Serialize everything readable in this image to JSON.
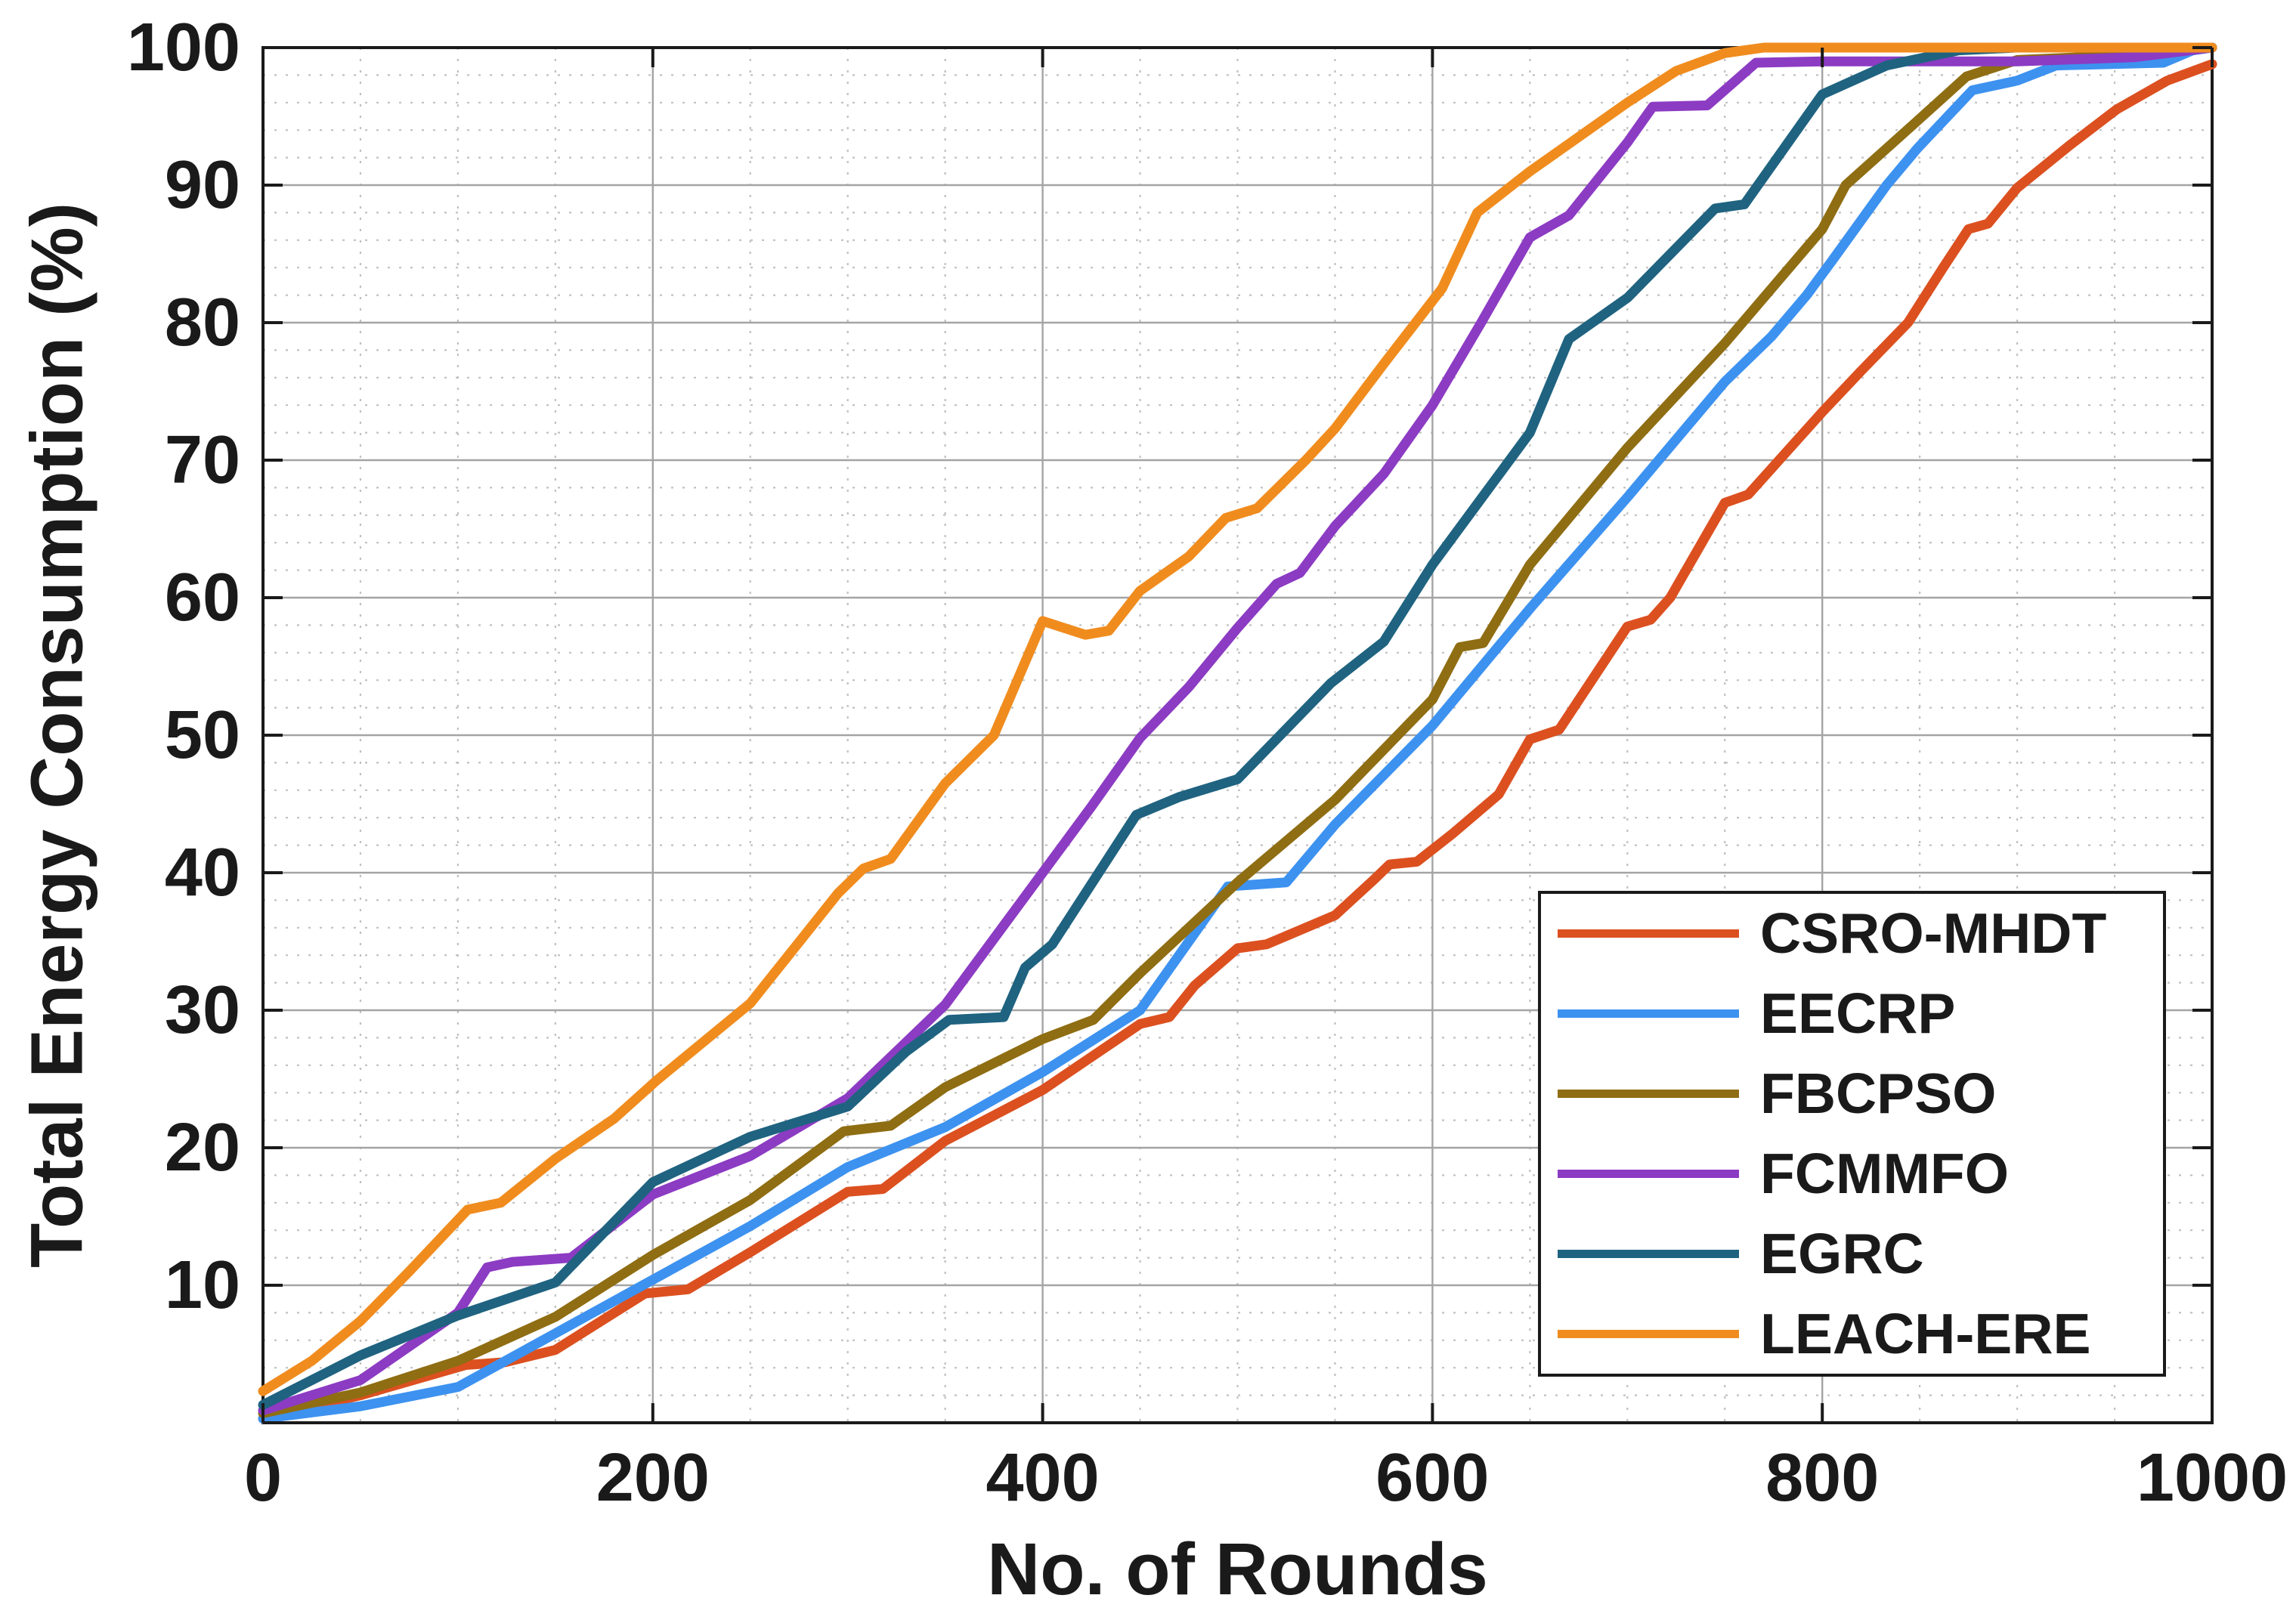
{
  "figure": {
    "background": "#ffffff",
    "axis_color": "#1a1a1a"
  },
  "chart_data": {
    "type": "line",
    "title": "",
    "xlabel": "No. of Rounds",
    "ylabel": "Total Energy Consumption (%)",
    "xlim": [
      0,
      1000
    ],
    "ylim": [
      0,
      100
    ],
    "x_ticks": [
      0,
      200,
      400,
      600,
      800,
      1000
    ],
    "x_tick_labels": [
      "0",
      "200",
      "400",
      "600",
      "800",
      "1000"
    ],
    "y_ticks": [
      10,
      20,
      30,
      40,
      50,
      60,
      70,
      80,
      90,
      100
    ],
    "y_tick_labels": [
      "10",
      "20",
      "30",
      "40",
      "50",
      "60",
      "70",
      "80",
      "90",
      "100"
    ],
    "grid": {
      "major": true,
      "minor": true,
      "minor_x_step": 50,
      "minor_y_step": 2,
      "major_color": "#a4a4a4",
      "minor_color": "#c0c0c0"
    },
    "legend_position": "southeast",
    "line_width": 13,
    "series": [
      {
        "name": "CSRO-MHDT",
        "color": "#DC5020",
        "points": [
          [
            0,
            0.3
          ],
          [
            50,
            2
          ],
          [
            104,
            4.2
          ],
          [
            124,
            4.4
          ],
          [
            150,
            5.3
          ],
          [
            196,
            9.4
          ],
          [
            218,
            9.7
          ],
          [
            250,
            12.4
          ],
          [
            300,
            16.8
          ],
          [
            318,
            17
          ],
          [
            350,
            20.5
          ],
          [
            400,
            24.2
          ],
          [
            450,
            29
          ],
          [
            465,
            29.5
          ],
          [
            478,
            31.8
          ],
          [
            500,
            34.5
          ],
          [
            515,
            34.8
          ],
          [
            550,
            36.9
          ],
          [
            570,
            39.5
          ],
          [
            578,
            40.6
          ],
          [
            592,
            40.8
          ],
          [
            610,
            42.8
          ],
          [
            634,
            45.7
          ],
          [
            650,
            49.7
          ],
          [
            665,
            50.4
          ],
          [
            700,
            57.9
          ],
          [
            712,
            58.4
          ],
          [
            722,
            60
          ],
          [
            750,
            66.9
          ],
          [
            762,
            67.5
          ],
          [
            800,
            73.5
          ],
          [
            820,
            76.5
          ],
          [
            844,
            80
          ],
          [
            862,
            84
          ],
          [
            875,
            86.8
          ],
          [
            885,
            87.2
          ],
          [
            900,
            89.8
          ],
          [
            927,
            92.9
          ],
          [
            951,
            95.5
          ],
          [
            977,
            97.6
          ],
          [
            1000,
            98.8
          ]
        ]
      },
      {
        "name": "EECRP",
        "color": "#3D92F0",
        "points": [
          [
            0,
            0.3
          ],
          [
            50,
            1.2
          ],
          [
            100,
            2.6
          ],
          [
            150,
            6.5
          ],
          [
            200,
            10.4
          ],
          [
            250,
            14.3
          ],
          [
            300,
            18.6
          ],
          [
            350,
            21.5
          ],
          [
            400,
            25.5
          ],
          [
            450,
            30
          ],
          [
            495,
            39
          ],
          [
            525,
            39.3
          ],
          [
            550,
            43.5
          ],
          [
            600,
            50.7
          ],
          [
            650,
            59.2
          ],
          [
            700,
            67.3
          ],
          [
            750,
            75.7
          ],
          [
            774,
            79
          ],
          [
            792,
            82
          ],
          [
            805,
            84.5
          ],
          [
            833,
            90
          ],
          [
            849,
            92.7
          ],
          [
            877,
            96.9
          ],
          [
            900,
            97.6
          ],
          [
            920,
            98.7
          ],
          [
            975,
            98.9
          ],
          [
            990,
            99.8
          ],
          [
            1000,
            100
          ]
        ]
      },
      {
        "name": "FBCPSO",
        "color": "#8F6D12",
        "points": [
          [
            0,
            0.7
          ],
          [
            50,
            2.2
          ],
          [
            100,
            4.5
          ],
          [
            150,
            7.7
          ],
          [
            200,
            12.2
          ],
          [
            250,
            16.2
          ],
          [
            298,
            21.2
          ],
          [
            322,
            21.6
          ],
          [
            350,
            24.4
          ],
          [
            400,
            27.9
          ],
          [
            426,
            29.3
          ],
          [
            450,
            32.7
          ],
          [
            500,
            39.3
          ],
          [
            550,
            45.3
          ],
          [
            600,
            52.6
          ],
          [
            614,
            56.4
          ],
          [
            626,
            56.7
          ],
          [
            650,
            62.4
          ],
          [
            700,
            70.9
          ],
          [
            750,
            78.5
          ],
          [
            800,
            86.8
          ],
          [
            812,
            90
          ],
          [
            849,
            94.7
          ],
          [
            874,
            97.9
          ],
          [
            900,
            99.1
          ],
          [
            950,
            99.4
          ],
          [
            975,
            100
          ],
          [
            1000,
            100
          ]
        ]
      },
      {
        "name": "FCMMFO",
        "color": "#8C3BC3",
        "points": [
          [
            0,
            0.9
          ],
          [
            50,
            3.1
          ],
          [
            100,
            8
          ],
          [
            115,
            11.3
          ],
          [
            128,
            11.7
          ],
          [
            158,
            12
          ],
          [
            200,
            16.6
          ],
          [
            250,
            19.4
          ],
          [
            300,
            23.6
          ],
          [
            350,
            30.4
          ],
          [
            400,
            40
          ],
          [
            425,
            44.8
          ],
          [
            450,
            49.8
          ],
          [
            475,
            53.5
          ],
          [
            500,
            57.8
          ],
          [
            520,
            61
          ],
          [
            532,
            61.8
          ],
          [
            550,
            65.2
          ],
          [
            575,
            69
          ],
          [
            600,
            74
          ],
          [
            625,
            80
          ],
          [
            650,
            86.2
          ],
          [
            670,
            87.8
          ],
          [
            700,
            93.1
          ],
          [
            713,
            95.7
          ],
          [
            741,
            95.8
          ],
          [
            766,
            98.9
          ],
          [
            800,
            99
          ],
          [
            900,
            99
          ],
          [
            960,
            99.3
          ],
          [
            1000,
            100
          ]
        ]
      },
      {
        "name": "EGRC",
        "color": "#1F6380",
        "points": [
          [
            0,
            1.3
          ],
          [
            50,
            4.9
          ],
          [
            100,
            7.8
          ],
          [
            150,
            10.2
          ],
          [
            163,
            12.1
          ],
          [
            200,
            17.5
          ],
          [
            250,
            20.8
          ],
          [
            300,
            23
          ],
          [
            330,
            27
          ],
          [
            352,
            29.3
          ],
          [
            380,
            29.5
          ],
          [
            391,
            33.1
          ],
          [
            405,
            34.8
          ],
          [
            448,
            44.2
          ],
          [
            470,
            45.5
          ],
          [
            500,
            46.8
          ],
          [
            548,
            53.8
          ],
          [
            575,
            56.8
          ],
          [
            600,
            62.4
          ],
          [
            650,
            72
          ],
          [
            670,
            78.8
          ],
          [
            700,
            81.8
          ],
          [
            745,
            88.3
          ],
          [
            760,
            88.6
          ],
          [
            800,
            96.6
          ],
          [
            833,
            98.7
          ],
          [
            870,
            99.8
          ],
          [
            900,
            100
          ],
          [
            1000,
            100
          ]
        ]
      },
      {
        "name": "LEACH-ERE",
        "color": "#F08C1E",
        "points": [
          [
            0,
            2.3
          ],
          [
            25,
            4.5
          ],
          [
            50,
            7.4
          ],
          [
            75,
            11
          ],
          [
            105,
            15.5
          ],
          [
            122,
            16
          ],
          [
            150,
            19.2
          ],
          [
            180,
            22.1
          ],
          [
            202,
            24.9
          ],
          [
            250,
            30.5
          ],
          [
            295,
            38.5
          ],
          [
            308,
            40.3
          ],
          [
            322,
            41
          ],
          [
            350,
            46.5
          ],
          [
            375,
            50
          ],
          [
            400,
            58.3
          ],
          [
            422,
            57.3
          ],
          [
            434,
            57.6
          ],
          [
            450,
            60.5
          ],
          [
            475,
            63
          ],
          [
            494,
            65.8
          ],
          [
            510,
            66.5
          ],
          [
            535,
            70
          ],
          [
            550,
            72.3
          ],
          [
            575,
            77
          ],
          [
            605,
            82.5
          ],
          [
            623,
            88
          ],
          [
            650,
            91
          ],
          [
            675,
            93.5
          ],
          [
            700,
            96
          ],
          [
            725,
            98.3
          ],
          [
            750,
            99.6
          ],
          [
            770,
            100
          ],
          [
            1000,
            100
          ]
        ]
      }
    ]
  },
  "legend": {
    "items": [
      "CSRO-MHDT",
      "EECRP",
      "FBCPSO",
      "FCMMFO",
      "EGRC",
      "LEACH-ERE"
    ]
  }
}
